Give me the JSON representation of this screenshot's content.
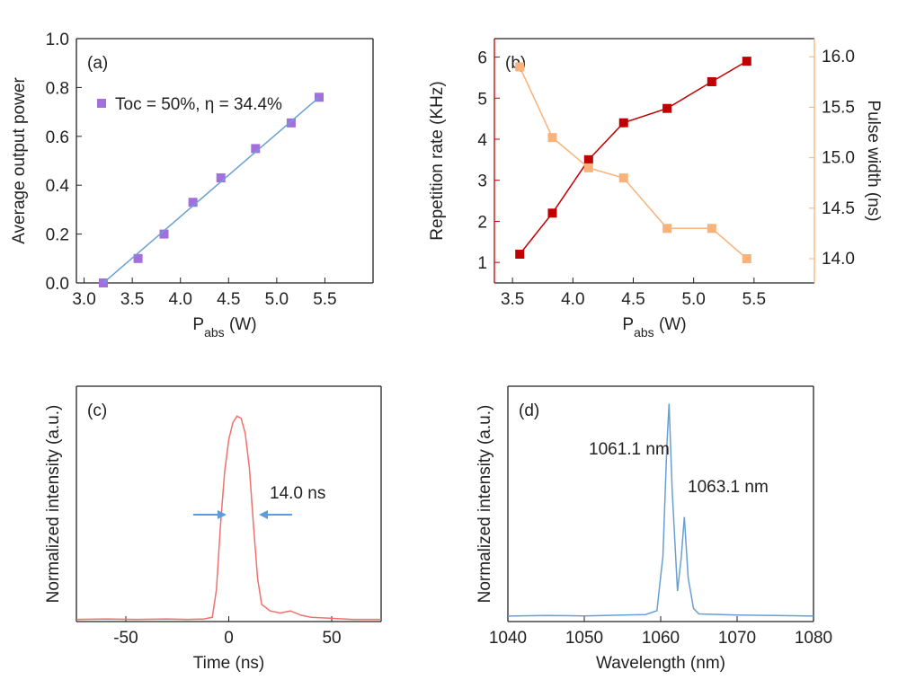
{
  "chart_data": [
    {
      "type": "scatter",
      "panel_label": "(a)",
      "ylabel": "Average output power",
      "xlabel": [
        "P",
        "abs",
        " (W)"
      ],
      "xlim": [
        2.92,
        6.0
      ],
      "ylim": [
        0,
        1
      ],
      "xticks": [
        {
          "value": 3,
          "label": "3.0"
        },
        3.5,
        {
          "value": 4,
          "label": "4.0"
        },
        4.5,
        {
          "value": 5,
          "label": "5.0"
        },
        5.5
      ],
      "yticks": [
        {
          "value": 0,
          "label": "0.0"
        },
        0.2,
        0.4,
        0.6,
        0.8,
        {
          "value": 1,
          "label": "1.0"
        }
      ],
      "series": [
        {
          "name": "Toc = 50%, η = 34.4%",
          "color": "#a36fdc",
          "marker": "square",
          "line": false,
          "x": [
            3.2,
            3.56,
            3.83,
            4.13,
            4.42,
            4.78,
            5.15,
            5.44
          ],
          "values": [
            0.0,
            0.1,
            0.2,
            0.33,
            0.43,
            0.55,
            0.655,
            0.76
          ]
        },
        {
          "color": "#6a9fd4",
          "line": true,
          "x": [
            3.2,
            5.44
          ],
          "values": [
            0.0,
            0.76
          ]
        }
      ]
    },
    {
      "type": "line",
      "panel_label": "(b)",
      "ylabel": "Repetition rate (KHz)",
      "y2label": "Pulse width (ns)",
      "xlabel": [
        "P",
        "abs",
        " (W)"
      ],
      "xlim": [
        3.35,
        6.0
      ],
      "ylim": [
        0.5,
        6.45
      ],
      "y2lim": [
        13.76,
        16.18
      ],
      "ycolor": "#c00000",
      "y2color": "#f8b27a",
      "xticks": [
        3.5,
        {
          "value": 4,
          "label": "4.0"
        },
        4.5,
        {
          "value": 5,
          "label": "5.0"
        },
        5.5
      ],
      "yticks": [
        1,
        2,
        3,
        4,
        5,
        6
      ],
      "y2ticks": [
        {
          "value": 14,
          "label": "14.0"
        },
        14.5,
        {
          "value": 15,
          "label": "15.0"
        },
        15.5,
        {
          "value": 16,
          "label": "16.0"
        }
      ],
      "series": [
        {
          "color": "#c00000",
          "marker": "square",
          "line": true,
          "x": [
            3.56,
            3.83,
            4.13,
            4.42,
            4.78,
            5.15,
            5.44
          ],
          "values": [
            1.2,
            2.2,
            3.5,
            4.4,
            4.75,
            5.4,
            5.9
          ]
        },
        {
          "color": "#f8b27a",
          "marker": "square",
          "line": true,
          "axis": "y2",
          "x": [
            3.56,
            3.83,
            4.13,
            4.42,
            4.78,
            5.15,
            5.44
          ],
          "values": [
            15.9,
            15.2,
            14.9,
            14.8,
            14.3,
            14.3,
            14.0
          ]
        }
      ]
    },
    {
      "type": "line",
      "panel_label": "(c)",
      "ylabel": "Normalized intensity (a.u.)",
      "xlabel": "Time (ns)",
      "xlim": [
        -74,
        74
      ],
      "ylim": [
        0,
        1.1
      ],
      "xticks": [
        -50,
        0,
        50
      ],
      "annotation": "14.0 ns",
      "annotation_color": "#5b9be0",
      "series": [
        {
          "color": "#f07070",
          "line": true,
          "x": [
            -74,
            -60,
            -45,
            -30,
            -20,
            -12,
            -8,
            -6,
            -4,
            -2,
            0,
            2,
            4,
            6,
            8,
            10,
            12,
            14,
            16,
            20,
            25,
            30,
            35,
            40,
            50,
            60,
            74
          ],
          "values": [
            0.01,
            0.012,
            0.01,
            0.012,
            0.01,
            0.012,
            0.02,
            0.15,
            0.45,
            0.7,
            0.85,
            0.93,
            0.96,
            0.95,
            0.88,
            0.72,
            0.45,
            0.2,
            0.08,
            0.05,
            0.04,
            0.05,
            0.03,
            0.02,
            0.015,
            0.01,
            0.01
          ]
        }
      ]
    },
    {
      "type": "line",
      "panel_label": "(d)",
      "ylabel": "Normalized intensity (a.u.)",
      "xlabel": "Wavelength (nm)",
      "xlim": [
        1040,
        1080
      ],
      "ylim": [
        0,
        1.08
      ],
      "xticks": [
        1040,
        1050,
        1060,
        1070,
        1080
      ],
      "annotations": [
        "1061.1 nm",
        "1063.1 nm"
      ],
      "annotation_color": "#3aa35f",
      "series": [
        {
          "color": "#6a9fd4",
          "line": true,
          "x": [
            1040,
            1045,
            1050,
            1055,
            1058,
            1059.5,
            1060.3,
            1060.8,
            1061.1,
            1061.5,
            1062.2,
            1062.7,
            1063.1,
            1063.6,
            1064.3,
            1065,
            1070,
            1075,
            1080
          ],
          "values": [
            0.025,
            0.028,
            0.026,
            0.03,
            0.032,
            0.05,
            0.3,
            0.8,
            1.0,
            0.6,
            0.14,
            0.3,
            0.48,
            0.2,
            0.06,
            0.035,
            0.03,
            0.028,
            0.025
          ]
        }
      ]
    }
  ]
}
